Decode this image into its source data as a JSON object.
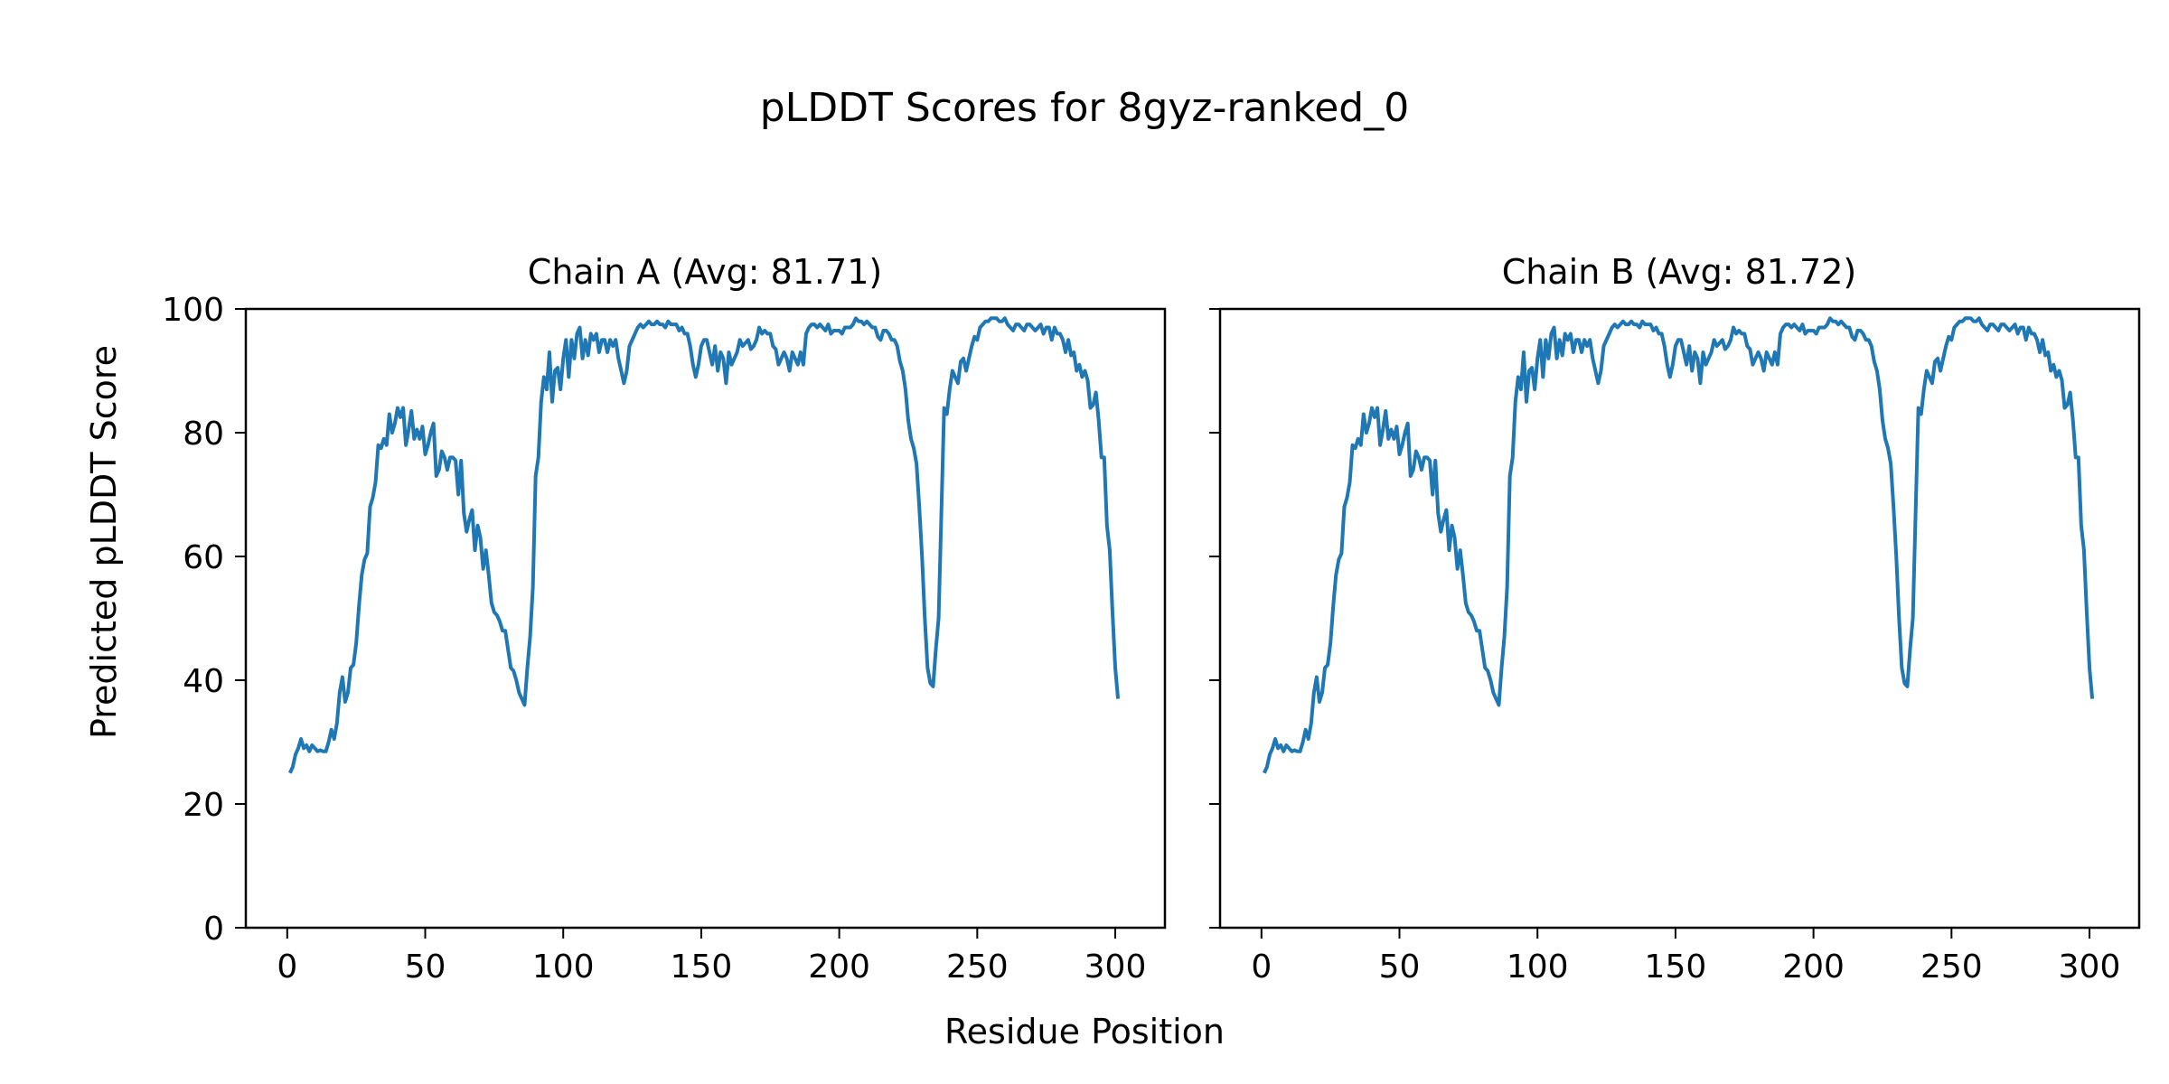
{
  "figure_title": "pLDDT Scores for 8gyz-ranked_0",
  "xlabel": "Residue Position",
  "ylabel": "Predicted pLDDT Score",
  "colors": {
    "line": "#1f77b4",
    "axes": "#000000",
    "background": "#ffffff"
  },
  "chart_data": [
    {
      "type": "line",
      "title": "Chain A (Avg: 81.71)",
      "xlim": [
        -15,
        318
      ],
      "ylim": [
        0,
        100
      ],
      "xticks": [
        0,
        50,
        100,
        150,
        200,
        250,
        300
      ],
      "yticks": [
        0,
        20,
        40,
        60,
        80,
        100
      ],
      "show_ytick_labels": true,
      "grid": false,
      "series": [
        {
          "name": "pLDDT",
          "x": "1..303",
          "values": [
            25,
            26,
            28,
            29,
            30.5,
            29,
            29.5,
            28.5,
            29.5,
            29,
            28.5,
            28.7,
            28.5,
            28.5,
            30,
            32,
            30.5,
            33,
            38,
            40.5,
            36.5,
            38,
            42,
            42.5,
            46,
            52,
            57,
            59.5,
            60.5,
            68,
            69.5,
            72,
            78,
            77.5,
            79,
            78,
            83,
            80,
            81.5,
            84,
            82.5,
            84,
            78,
            80.5,
            83.5,
            79,
            80.5,
            79,
            81,
            76.5,
            78,
            80,
            81.5,
            73,
            74,
            77,
            76,
            74,
            76,
            76,
            75.5,
            70,
            75.5,
            67,
            64,
            66,
            67.5,
            61,
            65,
            63,
            58,
            61,
            57,
            52.5,
            51,
            50.5,
            49.5,
            48,
            48,
            45,
            42,
            41.5,
            40,
            38,
            37,
            36,
            42,
            47,
            55,
            73,
            76,
            85,
            89,
            87,
            93,
            85,
            90,
            90.5,
            87,
            92,
            95,
            89,
            95,
            92,
            96,
            97,
            92,
            95,
            92.5,
            96,
            95,
            96,
            93,
            95,
            95,
            93,
            95,
            94,
            95,
            92,
            90,
            88,
            90,
            94,
            95,
            96,
            97,
            97.5,
            97,
            97.5,
            98,
            97.5,
            97.5,
            98,
            97.5,
            97.5,
            97,
            98,
            97.5,
            97.5,
            97.5,
            96.5,
            97,
            96,
            96,
            94,
            91,
            89,
            91,
            94,
            95,
            95,
            93,
            91,
            94,
            90,
            93,
            92,
            88,
            93,
            91,
            92,
            93,
            95,
            94,
            94.5,
            95,
            93.5,
            94,
            95,
            97,
            96,
            96.5,
            96,
            96,
            94,
            93.5,
            91,
            92,
            93,
            92,
            90,
            93,
            92,
            91,
            93,
            91,
            96,
            97,
            97.5,
            97.5,
            97,
            97.5,
            97,
            96.5,
            97.5,
            96,
            96.5,
            96.5,
            96.5,
            96,
            97,
            97,
            97,
            97.5,
            98.5,
            98,
            98,
            97.5,
            98,
            97.5,
            97,
            97,
            95.5,
            95,
            96.5,
            96.5,
            96,
            95,
            95,
            94,
            91.5,
            90,
            87,
            82,
            79,
            77.5,
            75,
            68,
            60,
            50,
            42,
            39.5,
            39,
            45,
            50,
            67,
            84,
            83,
            87,
            90,
            89,
            88,
            91.5,
            92,
            90,
            92,
            94,
            95.5,
            95,
            97,
            97.5,
            98,
            98,
            98.5,
            98.5,
            98.5,
            98,
            98,
            98.5,
            97.5,
            97,
            96.5,
            97.5,
            97.5,
            97,
            96.5,
            97.5,
            97.5,
            97,
            96.5,
            97,
            97.5,
            96,
            97,
            97,
            95,
            97,
            96,
            96,
            95,
            93,
            95,
            92.5,
            93,
            90,
            91,
            89,
            90,
            88.5,
            84,
            84.5,
            86.5,
            82,
            76,
            76,
            65,
            61,
            51,
            42,
            37
          ]
        }
      ]
    },
    {
      "type": "line",
      "title": "Chain B (Avg: 81.72)",
      "xlim": [
        -15,
        318
      ],
      "ylim": [
        0,
        100
      ],
      "xticks": [
        0,
        50,
        100,
        150,
        200,
        250,
        300
      ],
      "yticks": [
        0,
        20,
        40,
        60,
        80,
        100
      ],
      "show_ytick_labels": false,
      "grid": false,
      "series": [
        {
          "name": "pLDDT",
          "x": "1..303",
          "values": [
            25,
            26,
            28,
            29,
            30.5,
            29,
            29.5,
            28.5,
            29.5,
            29,
            28.5,
            28.7,
            28.5,
            28.5,
            30,
            32,
            30.5,
            33,
            38,
            40.5,
            36.5,
            38,
            42,
            42.5,
            46,
            52,
            57,
            59.5,
            60.5,
            68,
            69.5,
            72,
            78,
            77.5,
            79,
            78,
            83,
            80,
            81.5,
            84,
            82.5,
            84,
            78,
            80.5,
            83.5,
            79,
            80.5,
            79,
            81,
            76.5,
            78,
            80,
            81.5,
            73,
            74,
            77,
            76,
            74,
            76,
            76,
            75.5,
            70,
            75.5,
            67,
            64,
            66,
            67.5,
            61,
            65,
            63,
            58,
            61,
            57,
            52.5,
            51,
            50.5,
            49.5,
            48,
            48,
            45,
            42,
            41.5,
            40,
            38,
            37,
            36,
            42,
            47,
            55,
            73,
            76,
            85,
            89,
            87,
            93,
            85,
            90,
            90.5,
            87,
            92,
            95,
            89,
            95,
            92,
            96,
            97,
            92,
            95,
            92.5,
            96,
            95,
            96,
            93,
            95,
            95,
            93,
            95,
            94,
            95,
            92,
            90,
            88,
            90,
            94,
            95,
            96,
            97,
            97.5,
            97,
            97.5,
            98,
            97.5,
            97.5,
            98,
            97.5,
            97.5,
            97,
            98,
            97.5,
            97.5,
            97.5,
            96.5,
            97,
            96,
            96,
            94,
            91,
            89,
            91,
            94,
            95,
            95,
            93,
            91,
            94,
            90,
            93,
            92,
            88,
            93,
            91,
            92,
            93,
            95,
            94,
            94.5,
            95,
            93.5,
            94,
            95,
            97,
            96,
            96.5,
            96,
            96,
            94,
            93.5,
            91,
            92,
            93,
            92,
            90,
            93,
            92,
            91,
            93,
            91,
            96,
            97,
            97.5,
            97.5,
            97,
            97.5,
            97,
            96.5,
            97.5,
            96,
            96.5,
            96.5,
            96.5,
            96,
            97,
            97,
            97,
            97.5,
            98.5,
            98,
            98,
            97.5,
            98,
            97.5,
            97,
            97,
            95.5,
            95,
            96.5,
            96.5,
            96,
            95,
            95,
            94,
            91.5,
            90,
            87,
            82,
            79,
            77.5,
            75,
            68,
            60,
            50,
            42,
            39.5,
            39,
            45,
            50,
            67,
            84,
            83,
            87,
            90,
            89,
            88,
            91.5,
            92,
            90,
            92,
            94,
            95.5,
            95,
            97,
            97.5,
            98,
            98,
            98.5,
            98.5,
            98.5,
            98,
            98,
            98.5,
            97.5,
            97,
            96.5,
            97.5,
            97.5,
            97,
            96.5,
            97.5,
            97.5,
            97,
            96.5,
            97,
            97.5,
            96,
            97,
            97,
            95,
            97,
            96,
            96,
            95,
            93,
            95,
            92.5,
            93,
            90,
            91,
            89,
            90,
            88.5,
            84,
            84.5,
            86.5,
            82,
            76,
            76,
            65,
            61,
            51,
            42,
            37
          ]
        }
      ]
    }
  ]
}
